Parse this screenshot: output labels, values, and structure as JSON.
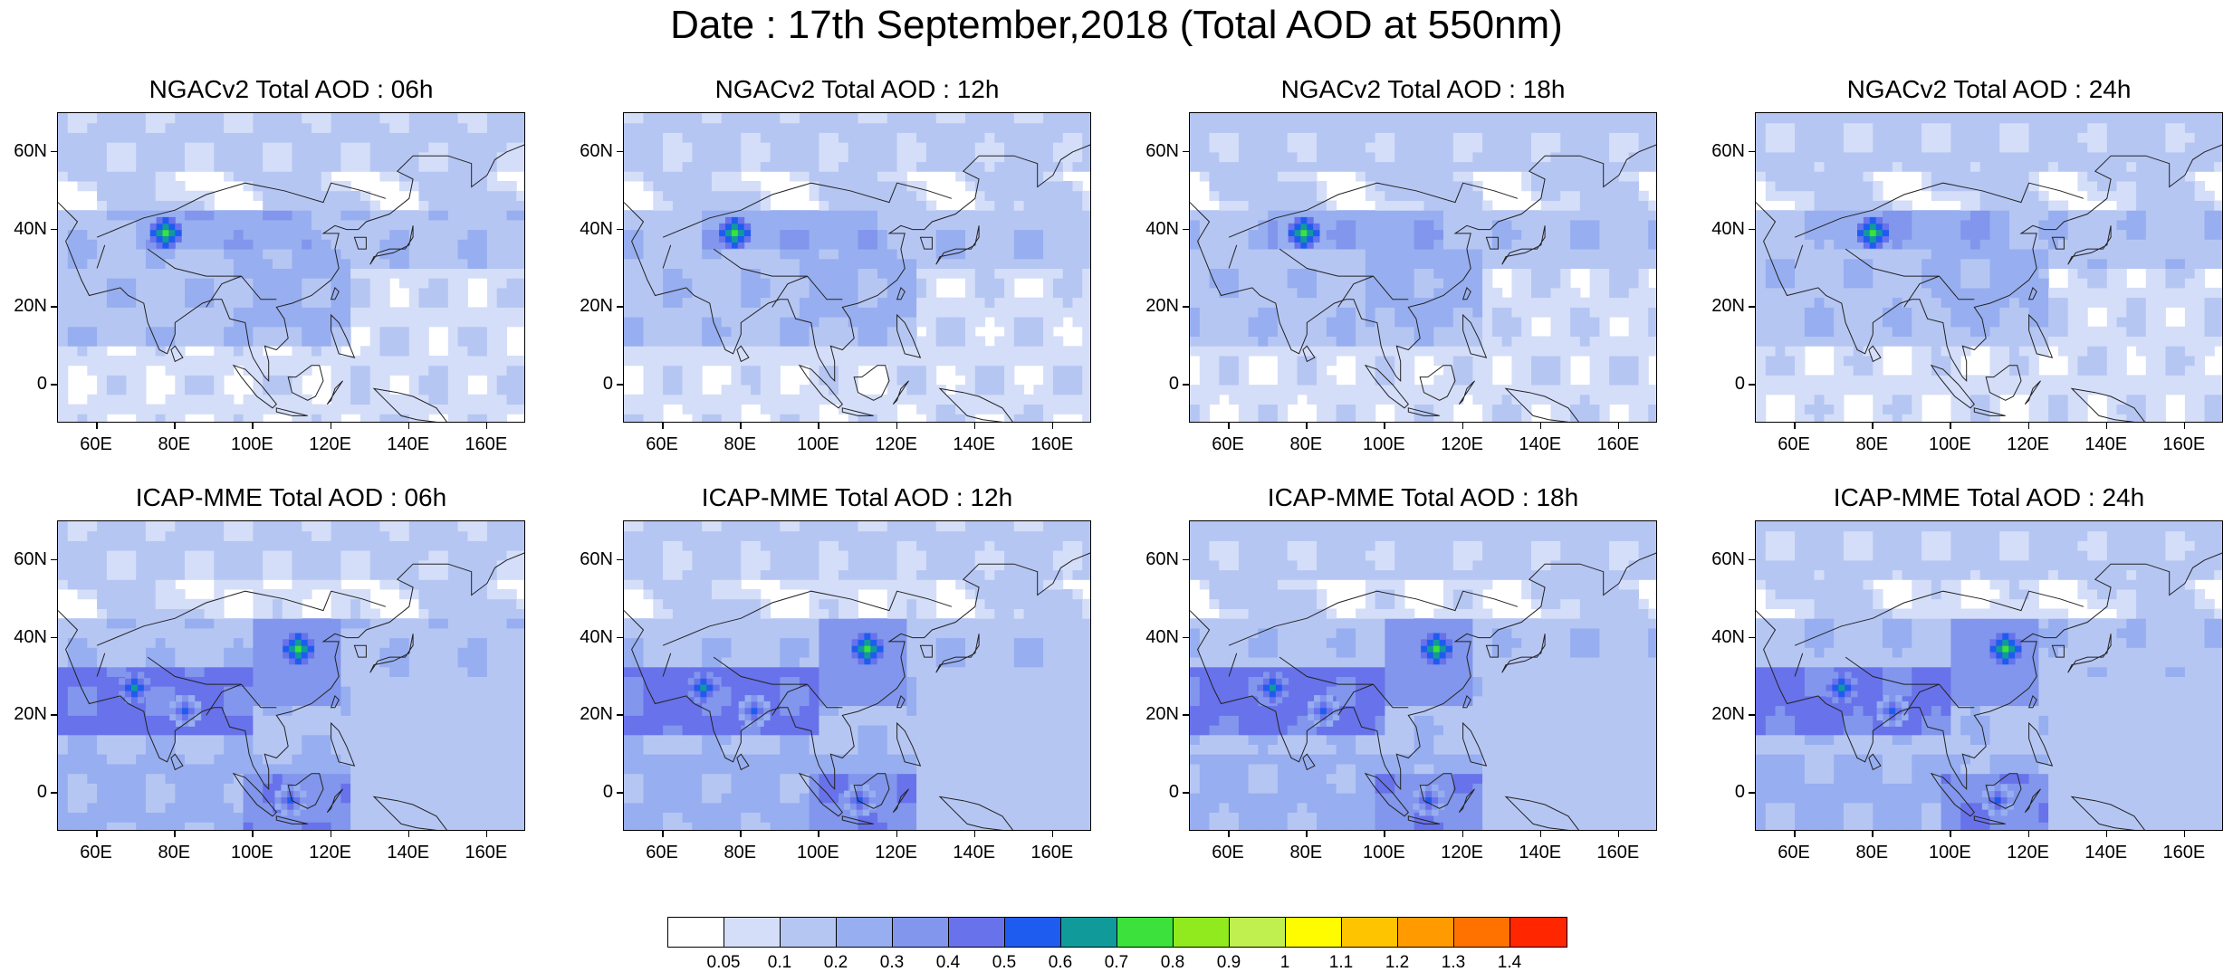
{
  "title": "Date : 17th September,2018 (Total AOD at 550nm)",
  "panels": [
    {
      "title": "NGACv2 Total AOD : 06h",
      "model": "NGACv2",
      "hour": "06h"
    },
    {
      "title": "NGACv2 Total AOD : 12h",
      "model": "NGACv2",
      "hour": "12h"
    },
    {
      "title": "NGACv2 Total AOD : 18h",
      "model": "NGACv2",
      "hour": "18h"
    },
    {
      "title": "NGACv2 Total AOD : 24h",
      "model": "NGACv2",
      "hour": "24h"
    },
    {
      "title": "ICAP-MME Total AOD : 06h",
      "model": "ICAP-MME",
      "hour": "06h"
    },
    {
      "title": "ICAP-MME Total AOD : 12h",
      "model": "ICAP-MME",
      "hour": "12h"
    },
    {
      "title": "ICAP-MME Total AOD : 18h",
      "model": "ICAP-MME",
      "hour": "18h"
    },
    {
      "title": "ICAP-MME Total AOD : 24h",
      "model": "ICAP-MME",
      "hour": "24h"
    }
  ],
  "map": {
    "lon_range": [
      50,
      170
    ],
    "lat_range": [
      -10,
      70
    ],
    "lon_ticks": [
      60,
      80,
      100,
      120,
      140,
      160
    ],
    "lon_tick_labels": [
      "60E",
      "80E",
      "100E",
      "120E",
      "140E",
      "160E"
    ],
    "lat_ticks": [
      0,
      20,
      40,
      60
    ],
    "lat_tick_labels": [
      "0",
      "20N",
      "40N",
      "60N"
    ]
  },
  "colorbar": {
    "labels": [
      "0.05",
      "0.1",
      "0.2",
      "0.3",
      "0.4",
      "0.5",
      "0.6",
      "0.7",
      "0.8",
      "0.9",
      "1",
      "1.1",
      "1.2",
      "1.3",
      "1.4"
    ],
    "colors": [
      "#ffffff",
      "#d4def8",
      "#b6c6f3",
      "#97aef0",
      "#8196ec",
      "#6872ea",
      "#1e5cf0",
      "#119a9a",
      "#3de13c",
      "#90ea1e",
      "#c0f050",
      "#fffc00",
      "#ffc400",
      "#ff9a00",
      "#ff7200",
      "#ff2600"
    ]
  },
  "plumes": {
    "NGACv2": [
      {
        "lon": 78,
        "lat": 40,
        "level": 8
      }
    ],
    "ICAP-MME": [
      {
        "lon": 112,
        "lat": 38,
        "level": 8
      },
      {
        "lon": 70,
        "lat": 28,
        "level": 7
      },
      {
        "lon": 83,
        "lat": 22,
        "level": 6
      },
      {
        "lon": 110,
        "lat": -1,
        "level": 6
      }
    ]
  }
}
